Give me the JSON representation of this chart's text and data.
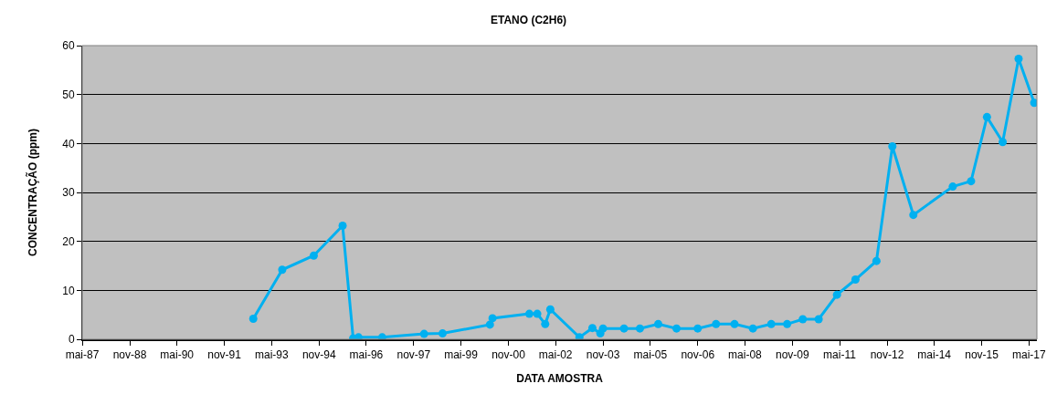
{
  "chart_data": {
    "type": "line",
    "title": "ETANO (C2H6)",
    "xlabel": "DATA AMOSTRA",
    "ylabel": "CONCENTRAÇÃO (ppm)",
    "x": [
      "1992-10",
      "1993-09",
      "1994-09",
      "1995-08",
      "1995-12",
      "1996-02",
      "1996-11",
      "1998-03",
      "1998-10",
      "2000-04",
      "2000-05",
      "2001-07",
      "2001-10",
      "2002-01",
      "2002-03",
      "2003-02",
      "2003-07",
      "2003-10",
      "2003-11",
      "2004-07",
      "2005-01",
      "2005-08",
      "2006-03",
      "2006-11",
      "2007-06",
      "2008-01",
      "2008-08",
      "2009-03",
      "2009-09",
      "2010-03",
      "2010-09",
      "2011-04",
      "2011-11",
      "2012-07",
      "2013-01",
      "2013-09",
      "2014-12",
      "2015-07",
      "2016-01",
      "2016-07",
      "2017-01",
      "2017-07"
    ],
    "series": [
      {
        "color": "#00b0f0",
        "values": [
          4.2,
          14.2,
          17.1,
          23.2,
          0.2,
          0.4,
          0.4,
          1.1,
          1.2,
          3.0,
          4.3,
          5.2,
          5.2,
          3.1,
          6.1,
          0.4,
          2.3,
          1.2,
          2.2,
          2.2,
          2.2,
          3.1,
          2.2,
          2.2,
          3.1,
          3.1,
          2.2,
          3.1,
          3.1,
          4.1,
          4.1,
          9.1,
          12.2,
          16.0,
          39.4,
          25.4,
          31.2,
          32.3,
          45.4,
          40.3,
          57.3,
          48.3
        ]
      }
    ],
    "xlim": [
      "1987-05",
      "2017-08"
    ],
    "xticks": [
      {
        "value": "1987-05",
        "label": "mai-87"
      },
      {
        "value": "1988-11",
        "label": "nov-88"
      },
      {
        "value": "1990-05",
        "label": "mai-90"
      },
      {
        "value": "1991-11",
        "label": "nov-91"
      },
      {
        "value": "1993-05",
        "label": "mai-93"
      },
      {
        "value": "1994-11",
        "label": "nov-94"
      },
      {
        "value": "1996-05",
        "label": "mai-96"
      },
      {
        "value": "1997-11",
        "label": "nov-97"
      },
      {
        "value": "1999-05",
        "label": "mai-99"
      },
      {
        "value": "2000-11",
        "label": "nov-00"
      },
      {
        "value": "2002-05",
        "label": "mai-02"
      },
      {
        "value": "2003-11",
        "label": "nov-03"
      },
      {
        "value": "2005-05",
        "label": "mai-05"
      },
      {
        "value": "2006-11",
        "label": "nov-06"
      },
      {
        "value": "2008-05",
        "label": "mai-08"
      },
      {
        "value": "2009-11",
        "label": "nov-09"
      },
      {
        "value": "2011-05",
        "label": "mai-11"
      },
      {
        "value": "2012-11",
        "label": "nov-12"
      },
      {
        "value": "2014-05",
        "label": "mai-14"
      },
      {
        "value": "2015-11",
        "label": "nov-15"
      },
      {
        "value": "2017-05",
        "label": "mai-17"
      }
    ],
    "ylim": [
      0,
      60
    ],
    "yticks": [
      0,
      10,
      20,
      30,
      40,
      50,
      60
    ],
    "grid": "y",
    "marker": "circle",
    "line_style": "solid"
  }
}
